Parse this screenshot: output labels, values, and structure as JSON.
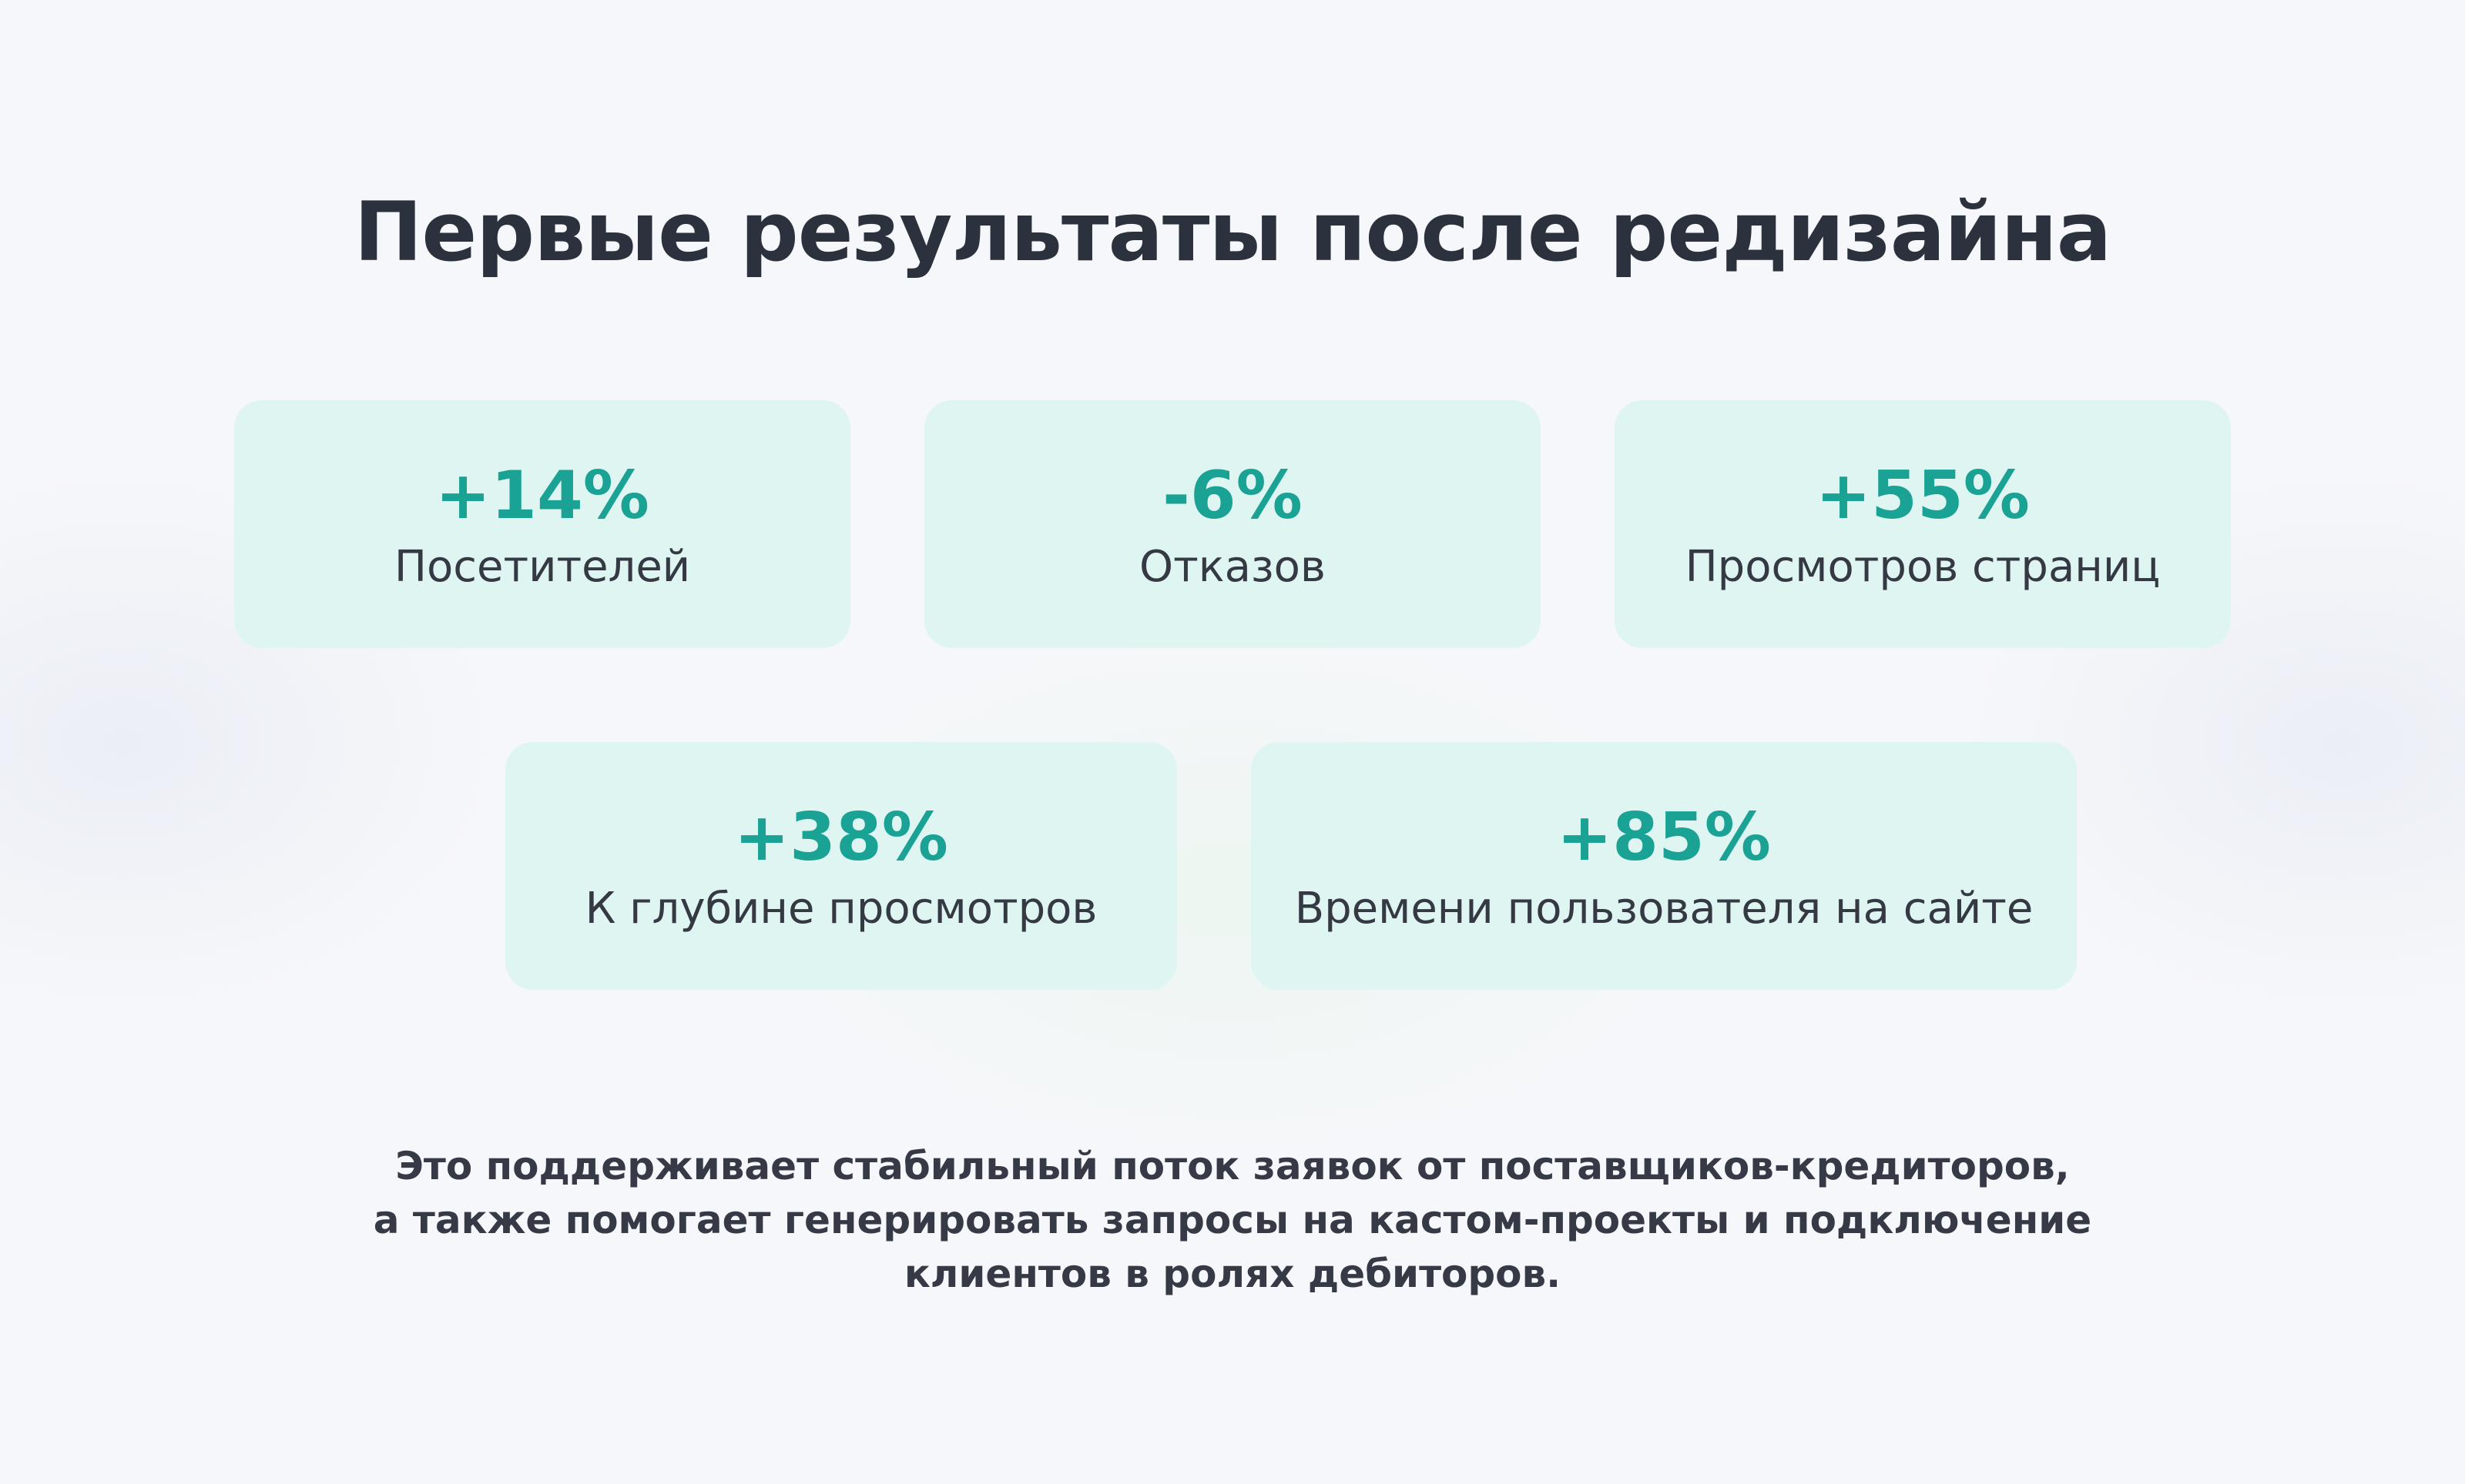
{
  "title": "Первые результаты после редизайна",
  "cards": [
    {
      "value": "+14%",
      "label": "Посетителей"
    },
    {
      "value": "-6%",
      "label": "Отказов"
    },
    {
      "value": "+55%",
      "label": "Просмотров страниц"
    },
    {
      "value": "+38%",
      "label": "К глубине просмотров"
    },
    {
      "value": "+85%",
      "label": "Времени пользователя на сайте"
    }
  ],
  "footer": {
    "lines": [
      "Это поддерживает стабильный поток заявок от поставщиков-кредиторов,",
      "а также помогает генерировать запросы на кастом-проекты и подключение",
      "клиентов в ролях дебиторов."
    ]
  },
  "colors": {
    "accent": "#1aa294",
    "card_background": "#dff5f1",
    "text_dark": "#2c313e"
  }
}
